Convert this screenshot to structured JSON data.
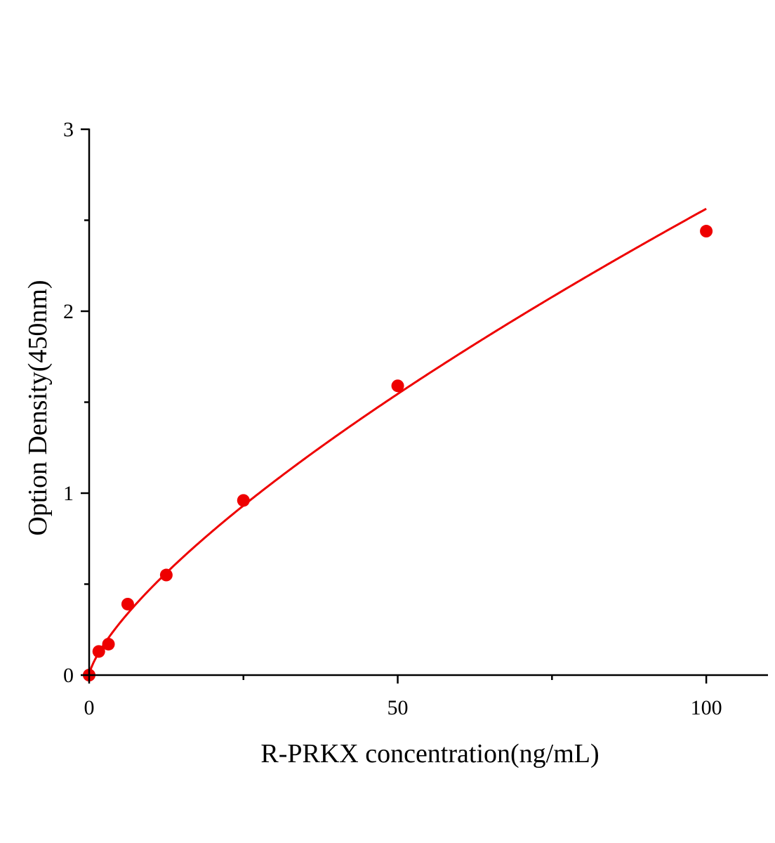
{
  "chart_data": {
    "type": "scatter",
    "title": "",
    "xlabel": "R-PRKX concentration(ng/mL)",
    "ylabel": "Option Density(450nm)",
    "xlim": [
      0,
      110
    ],
    "ylim": [
      0,
      3
    ],
    "x_ticks": [
      0,
      50,
      100
    ],
    "x_minor_ticks": [
      25,
      75
    ],
    "y_ticks": [
      0,
      1,
      2,
      3
    ],
    "y_minor_ticks": [
      0.5,
      1.5,
      2.5
    ],
    "grid": false,
    "legend": "none",
    "colors": {
      "series": "#ee0000",
      "axes": "#000000"
    },
    "series": [
      {
        "points": [
          {
            "x": 0,
            "y": 0.0
          },
          {
            "x": 1.56,
            "y": 0.13
          },
          {
            "x": 3.13,
            "y": 0.17
          },
          {
            "x": 6.25,
            "y": 0.39
          },
          {
            "x": 12.5,
            "y": 0.55
          },
          {
            "x": 25,
            "y": 0.96
          },
          {
            "x": 50,
            "y": 1.59
          },
          {
            "x": 100,
            "y": 2.44
          }
        ],
        "fit_curve": true
      }
    ]
  }
}
